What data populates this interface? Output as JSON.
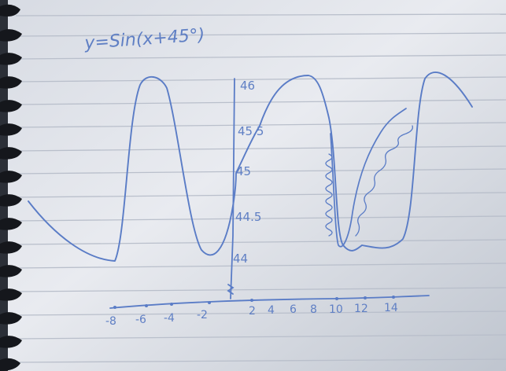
{
  "photo": {
    "subject": "notebook-page-photo",
    "ink_color": "#5a7cc6",
    "paper_color": "#eef0f4",
    "rule_color": "#c7cbd6"
  },
  "handwriting": {
    "formula": "y=Sin(x+45°)",
    "y_ticks": [
      "46",
      "45.5",
      "45",
      "44.5",
      "44"
    ],
    "x_ticks": [
      "-8",
      "-6",
      "-4",
      "-2",
      "2",
      "4",
      "6",
      "8",
      "10",
      "12",
      "14"
    ]
  }
}
